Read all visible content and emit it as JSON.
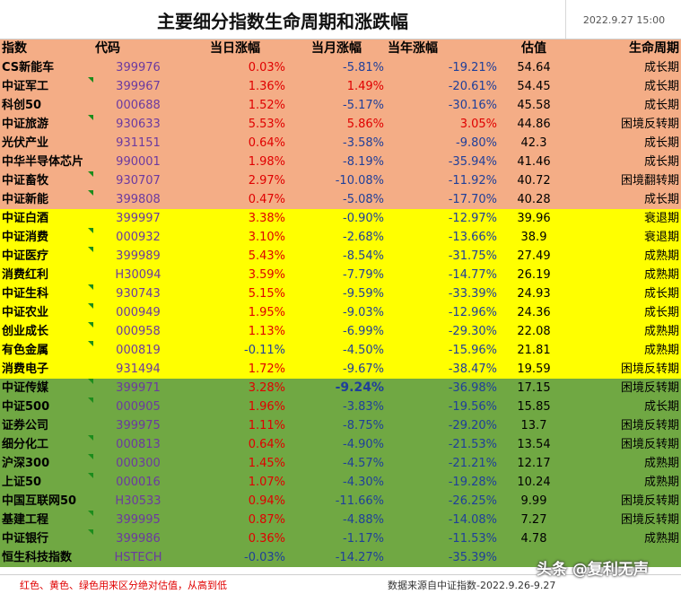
{
  "header": {
    "title": "主要细分指数生命周期和涨跌幅",
    "date": "2022.9.27 15:00"
  },
  "columns": [
    "指数",
    "代码",
    "当日涨幅",
    "当月涨幅",
    "当年涨幅",
    "估值",
    "生命周期"
  ],
  "colors": {
    "orange": "#f4ad86",
    "yellow": "#ffff00",
    "green": "#70a843",
    "up": "#e00000",
    "down": "#1f3f9a"
  },
  "rows": [
    {
      "group": "orange",
      "name": "CS新能车",
      "code": "399976",
      "day": "0.03%",
      "month": "-5.81%",
      "year": "-19.21%",
      "val": "54.64",
      "cycle": "成长期",
      "flag": false
    },
    {
      "group": "orange",
      "name": "中证军工",
      "code": "399967",
      "day": "1.36%",
      "month": "1.49%",
      "year": "-20.61%",
      "val": "54.45",
      "cycle": "成长期",
      "flag": true
    },
    {
      "group": "orange",
      "name": "科创50",
      "code": "000688",
      "day": "1.52%",
      "month": "-5.17%",
      "year": "-30.16%",
      "val": "45.58",
      "cycle": "成长期",
      "flag": false
    },
    {
      "group": "orange",
      "name": "中证旅游",
      "code": "930633",
      "day": "5.53%",
      "month": "5.86%",
      "year": "3.05%",
      "val": "44.86",
      "cycle": "困境反转期",
      "flag": true
    },
    {
      "group": "orange",
      "name": "光伏产业",
      "code": "931151",
      "day": "0.64%",
      "month": "-3.58%",
      "year": "-9.80%",
      "val": "42.3",
      "cycle": "成长期",
      "flag": false
    },
    {
      "group": "orange",
      "name": "中华半导体芯片",
      "code": "990001",
      "day": "1.98%",
      "month": "-8.19%",
      "year": "-35.94%",
      "val": "41.46",
      "cycle": "成长期",
      "flag": false
    },
    {
      "group": "orange",
      "name": "中证畜牧",
      "code": "930707",
      "day": "2.97%",
      "month": "-10.08%",
      "year": "-11.92%",
      "val": "40.72",
      "cycle": "困境翻转期",
      "flag": true
    },
    {
      "group": "orange",
      "name": "中证新能",
      "code": "399808",
      "day": "0.47%",
      "month": "-5.08%",
      "year": "-17.70%",
      "val": "40.28",
      "cycle": "成长期",
      "flag": true
    },
    {
      "group": "yellow",
      "name": "中证白酒",
      "code": "399997",
      "day": "3.38%",
      "month": "-0.90%",
      "year": "-12.97%",
      "val": "39.96",
      "cycle": "衰退期",
      "flag": false
    },
    {
      "group": "yellow",
      "name": "中证消费",
      "code": "000932",
      "day": "3.10%",
      "month": "-2.68%",
      "year": "-13.66%",
      "val": "38.9",
      "cycle": "衰退期",
      "flag": true
    },
    {
      "group": "yellow",
      "name": "中证医疗",
      "code": "399989",
      "day": "5.43%",
      "month": "-8.54%",
      "year": "-31.75%",
      "val": "27.49",
      "cycle": "成熟期",
      "flag": true
    },
    {
      "group": "yellow",
      "name": "消费红利",
      "code": "H30094",
      "day": "3.59%",
      "month": "-7.79%",
      "year": "-14.77%",
      "val": "26.19",
      "cycle": "成熟期",
      "flag": false
    },
    {
      "group": "yellow",
      "name": "中证生科",
      "code": "930743",
      "day": "5.15%",
      "month": "-9.59%",
      "year": "-33.39%",
      "val": "24.93",
      "cycle": "成长期",
      "flag": true
    },
    {
      "group": "yellow",
      "name": "中证农业",
      "code": "000949",
      "day": "1.95%",
      "month": "-9.03%",
      "year": "-12.96%",
      "val": "24.36",
      "cycle": "成长期",
      "flag": true
    },
    {
      "group": "yellow",
      "name": "创业成长",
      "code": "000958",
      "day": "1.13%",
      "month": "-6.99%",
      "year": "-29.30%",
      "val": "22.08",
      "cycle": "成熟期",
      "flag": true
    },
    {
      "group": "yellow",
      "name": "有色金属",
      "code": "000819",
      "day": "-0.11%",
      "month": "-4.50%",
      "year": "-15.96%",
      "val": "21.81",
      "cycle": "成熟期",
      "flag": true
    },
    {
      "group": "yellow",
      "name": "消费电子",
      "code": "931494",
      "day": "1.72%",
      "month": "-9.67%",
      "year": "-38.47%",
      "val": "19.59",
      "cycle": "困境反转期",
      "flag": false
    },
    {
      "group": "green",
      "name": "中证传媒",
      "code": "399971",
      "day": "3.28%",
      "month": "-9.24%",
      "year": "-36.98%",
      "val": "17.15",
      "cycle": "困境反转期",
      "flag": true,
      "month_big": true
    },
    {
      "group": "green",
      "name": "中证500",
      "code": "000905",
      "day": "1.96%",
      "month": "-3.83%",
      "year": "-19.56%",
      "val": "15.85",
      "cycle": "成长期",
      "flag": true
    },
    {
      "group": "green",
      "name": "证券公司",
      "code": "399975",
      "day": "1.11%",
      "month": "-8.75%",
      "year": "-29.20%",
      "val": "13.7",
      "cycle": "困境反转期",
      "flag": false
    },
    {
      "group": "green",
      "name": "细分化工",
      "code": "000813",
      "day": "0.64%",
      "month": "-4.90%",
      "year": "-21.53%",
      "val": "13.54",
      "cycle": "困境反转期",
      "flag": true
    },
    {
      "group": "green",
      "name": "沪深300",
      "code": "000300",
      "day": "1.45%",
      "month": "-4.57%",
      "year": "-21.21%",
      "val": "12.17",
      "cycle": "成熟期",
      "flag": true
    },
    {
      "group": "green",
      "name": "上证50",
      "code": "000016",
      "day": "1.07%",
      "month": "-4.30%",
      "year": "-19.28%",
      "val": "10.24",
      "cycle": "成熟期",
      "flag": true
    },
    {
      "group": "green",
      "name": "中国互联网50",
      "code": "H30533",
      "day": "0.94%",
      "month": "-11.66%",
      "year": "-26.25%",
      "val": "9.99",
      "cycle": "困境反转期",
      "flag": false
    },
    {
      "group": "green",
      "name": "基建工程",
      "code": "399995",
      "day": "0.87%",
      "month": "-4.88%",
      "year": "-14.08%",
      "val": "7.27",
      "cycle": "困境反转期",
      "flag": true
    },
    {
      "group": "green",
      "name": "中证银行",
      "code": "399986",
      "day": "0.36%",
      "month": "-1.17%",
      "year": "-11.53%",
      "val": "4.78",
      "cycle": "成熟期",
      "flag": true
    },
    {
      "group": "green",
      "name": "恒生科技指数",
      "code": "HSTECH",
      "day": "-0.03%",
      "month": "-14.27%",
      "year": "-35.39%",
      "val": "",
      "cycle": "",
      "flag": false
    }
  ],
  "footer": {
    "legend_note": "红色、黄色、绿色用来区分绝对估值，从高到低",
    "source_note": "数据来源自中证指数-2022.9.26-9.27"
  },
  "watermark": "头条 @复利无声"
}
